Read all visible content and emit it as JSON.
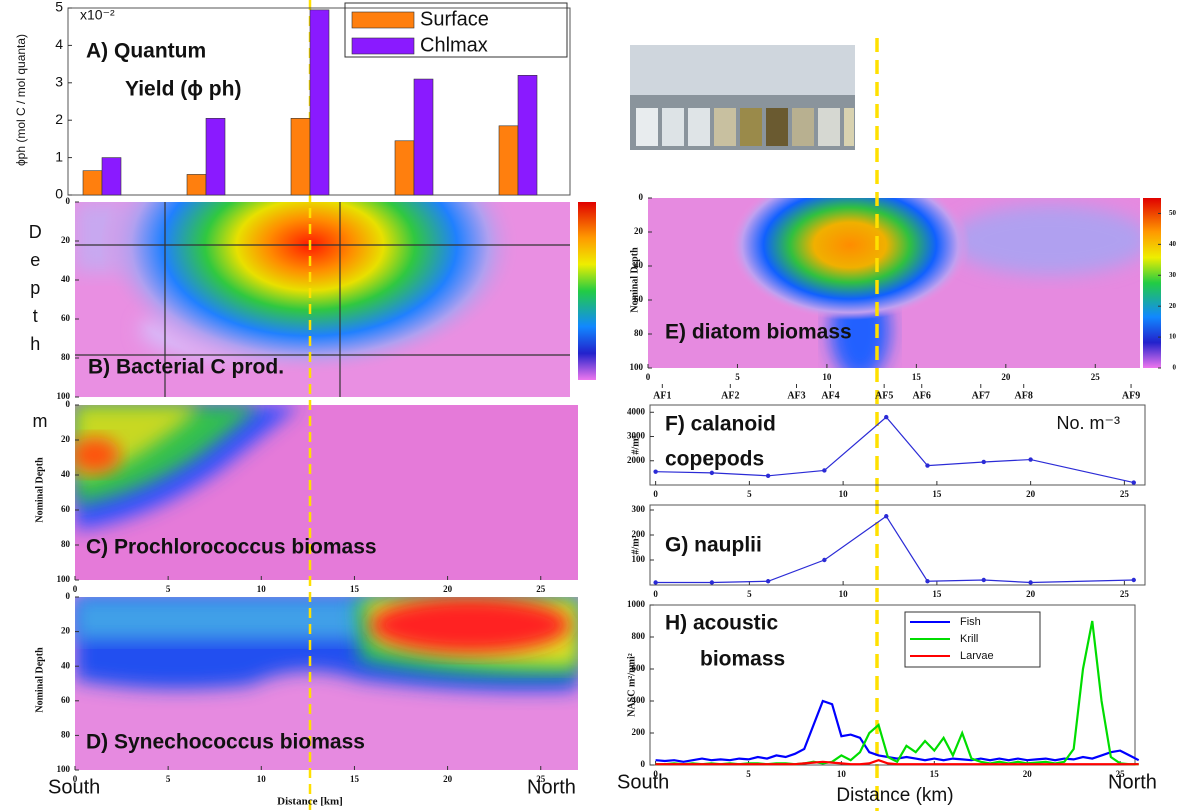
{
  "chart_data": [
    {
      "type": "bar",
      "title": [
        "A) Quantum",
        "Yield (ϕ ph)"
      ],
      "ylabel": "ϕph (mol C / mol quanta)",
      "multiplier": "x10⁻²",
      "categories": [
        null,
        null,
        null,
        null,
        null
      ],
      "ylim": [
        0,
        5
      ],
      "yticks": [
        0,
        1,
        2,
        3,
        4,
        5
      ],
      "legend": "upper right",
      "series": [
        {
          "name": "Surface",
          "color": "#ff7f0e",
          "values": [
            0.65,
            0.55,
            2.05,
            1.45,
            1.85
          ]
        },
        {
          "name": "Chlmax",
          "color": "#8a1aff",
          "values": [
            1.0,
            2.05,
            4.95,
            3.1,
            3.2
          ]
        }
      ]
    },
    {
      "type": "contour",
      "title": [
        "B) Bacterial C prod."
      ],
      "side_label": "Depth",
      "side_unit": "m",
      "ylim": [
        100,
        0
      ],
      "yticks": [
        0,
        20,
        40,
        60,
        80,
        100
      ]
    },
    {
      "type": "contour",
      "title": [
        "C) Prochlorococcus biomass"
      ],
      "ylabel": "Nominal Depth",
      "xlim": [
        0,
        27
      ],
      "xticks": [
        0,
        5,
        10,
        15,
        20,
        25
      ],
      "ylim": [
        100,
        0
      ],
      "yticks": [
        0,
        20,
        40,
        60,
        80,
        100
      ]
    },
    {
      "type": "contour",
      "title": [
        "D) Synechococcus biomass"
      ],
      "ylabel": "Nominal Depth",
      "xlabel": "Distance [km]",
      "left_label": "South",
      "right_label": "North",
      "xlim": [
        0,
        27
      ],
      "xticks": [
        0,
        5,
        10,
        15,
        20,
        25
      ],
      "ylim": [
        100,
        0
      ],
      "yticks": [
        0,
        20,
        40,
        60,
        80,
        100
      ]
    },
    {
      "type": "contour",
      "title": [
        "E) diatom biomass"
      ],
      "ylabel": "Nominal Depth",
      "xlim": [
        0,
        27.5
      ],
      "xticks": [
        0,
        5,
        10,
        15,
        20,
        25
      ],
      "ylim": [
        100,
        0
      ],
      "yticks": [
        0,
        20,
        40,
        60,
        80,
        100
      ],
      "station_ticks": [
        {
          "value": 0.8,
          "label": "AF1"
        },
        {
          "value": 4.6,
          "label": "AF2"
        },
        {
          "value": 8.3,
          "label": "AF3"
        },
        {
          "value": 10.2,
          "label": "AF4"
        },
        {
          "value": 13.2,
          "label": "AF5"
        },
        {
          "value": 15.3,
          "label": "AF6"
        },
        {
          "value": 18.6,
          "label": "AF7"
        },
        {
          "value": 21,
          "label": "AF8"
        },
        {
          "value": 27,
          "label": "AF9"
        }
      ],
      "clim": [
        0,
        55
      ],
      "cticks": [
        0,
        10,
        20,
        30,
        40,
        50
      ]
    },
    {
      "type": "line",
      "title": [
        "F) calanoid",
        "copepods"
      ],
      "ylabel": "#/m³",
      "annotation": "No. m⁻³",
      "color": "#2b2bd6",
      "x": [
        0,
        3,
        6,
        9,
        12.3,
        14.5,
        17.5,
        20,
        25.5
      ],
      "values": [
        1550,
        1500,
        1380,
        1600,
        3800,
        1800,
        1950,
        2050,
        1100
      ],
      "xlim": [
        -0.3,
        26.1
      ],
      "xticks": [
        0,
        5,
        10,
        15,
        20,
        25
      ],
      "ylim": [
        1000,
        4300
      ],
      "yticks": [
        2000,
        3000,
        4000
      ]
    },
    {
      "type": "line",
      "title": [
        "G) nauplii"
      ],
      "ylabel": "#/m³",
      "color": "#2b2bd6",
      "x": [
        0,
        3,
        6,
        9,
        12.3,
        14.5,
        17.5,
        20,
        25.5
      ],
      "values": [
        10,
        10,
        15,
        100,
        275,
        15,
        20,
        10,
        20
      ],
      "xlim": [
        -0.3,
        26.1
      ],
      "xticks": [
        0,
        5,
        10,
        15,
        20,
        25
      ],
      "ylim": [
        0,
        320
      ],
      "yticks": [
        100,
        200,
        300
      ]
    },
    {
      "type": "line",
      "title": [
        "H) acoustic",
        "biomass"
      ],
      "ylabel": "NASC m²/nmi²",
      "xlabel": "Distance (km)",
      "left_label": "South",
      "right_label": "North",
      "legend": "upper right",
      "xlim": [
        -0.3,
        25.8
      ],
      "xticks": [
        0,
        5,
        10,
        15,
        20,
        25
      ],
      "ylim": [
        0,
        1000
      ],
      "yticks": [
        0,
        200,
        400,
        600,
        800,
        1000
      ],
      "x": [
        0,
        0.5,
        1,
        1.5,
        2,
        2.5,
        3,
        3.5,
        4,
        4.5,
        5,
        5.5,
        6,
        6.5,
        7,
        7.5,
        8,
        8.5,
        9,
        9.5,
        10,
        10.5,
        11,
        11.5,
        12,
        12.5,
        13,
        13.5,
        14,
        14.5,
        15,
        15.5,
        16,
        16.5,
        17,
        17.5,
        18,
        18.5,
        19,
        19.5,
        20,
        20.5,
        21,
        21.5,
        22,
        22.5,
        23,
        23.5,
        24,
        24.5,
        25,
        25.5,
        26
      ],
      "series": [
        {
          "name": "Fish",
          "color": "#0000ff",
          "values": [
            30,
            25,
            30,
            20,
            30,
            40,
            30,
            35,
            30,
            40,
            35,
            50,
            40,
            60,
            50,
            70,
            100,
            250,
            400,
            380,
            180,
            190,
            170,
            80,
            60,
            50,
            40,
            50,
            40,
            30,
            40,
            30,
            40,
            35,
            30,
            40,
            30,
            40,
            30,
            40,
            30,
            35,
            40,
            30,
            40,
            35,
            50,
            40,
            60,
            80,
            90,
            60,
            30
          ]
        },
        {
          "name": "Krill",
          "color": "#00dd00",
          "values": [
            5,
            5,
            10,
            5,
            10,
            5,
            10,
            5,
            10,
            5,
            10,
            10,
            5,
            10,
            10,
            5,
            10,
            20,
            10,
            20,
            60,
            30,
            80,
            200,
            250,
            50,
            20,
            120,
            80,
            150,
            90,
            170,
            60,
            200,
            40,
            20,
            10,
            20,
            10,
            20,
            10,
            15,
            20,
            10,
            20,
            100,
            600,
            900,
            400,
            50,
            10,
            5,
            5
          ]
        },
        {
          "name": "Larvae",
          "color": "#ff0000",
          "values": [
            5,
            5,
            5,
            5,
            5,
            5,
            5,
            5,
            5,
            5,
            5,
            5,
            5,
            5,
            5,
            5,
            10,
            15,
            20,
            15,
            10,
            5,
            5,
            10,
            30,
            10,
            5,
            5,
            5,
            5,
            5,
            5,
            5,
            5,
            5,
            5,
            5,
            5,
            5,
            5,
            5,
            5,
            5,
            5,
            5,
            5,
            5,
            5,
            5,
            5,
            5,
            5,
            5
          ]
        }
      ]
    }
  ]
}
